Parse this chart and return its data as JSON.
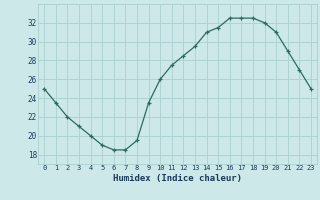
{
  "x": [
    0,
    1,
    2,
    3,
    4,
    5,
    6,
    7,
    8,
    9,
    10,
    11,
    12,
    13,
    14,
    15,
    16,
    17,
    18,
    19,
    20,
    21,
    22,
    23
  ],
  "y": [
    25,
    23.5,
    22,
    21,
    20,
    19,
    18.5,
    18.5,
    19.5,
    23.5,
    26,
    27.5,
    28.5,
    29.5,
    31,
    31.5,
    32.5,
    32.5,
    32.5,
    32,
    31,
    29,
    27,
    25
  ],
  "line_color": "#2e6b5e",
  "marker_color": "#2e6b5e",
  "bg_color": "#cce8e8",
  "grid_color": "#aad0ce",
  "xlabel": "Humidex (Indice chaleur)",
  "xlabel_color": "#1a3a5a",
  "tick_color": "#1a3a5a",
  "ylim": [
    17,
    34
  ],
  "xlim": [
    -0.5,
    23.5
  ],
  "yticks": [
    18,
    20,
    22,
    24,
    26,
    28,
    30,
    32
  ],
  "xticks": [
    0,
    1,
    2,
    3,
    4,
    5,
    6,
    7,
    8,
    9,
    10,
    11,
    12,
    13,
    14,
    15,
    16,
    17,
    18,
    19,
    20,
    21,
    22,
    23
  ],
  "figsize": [
    3.2,
    2.0
  ],
  "dpi": 100
}
